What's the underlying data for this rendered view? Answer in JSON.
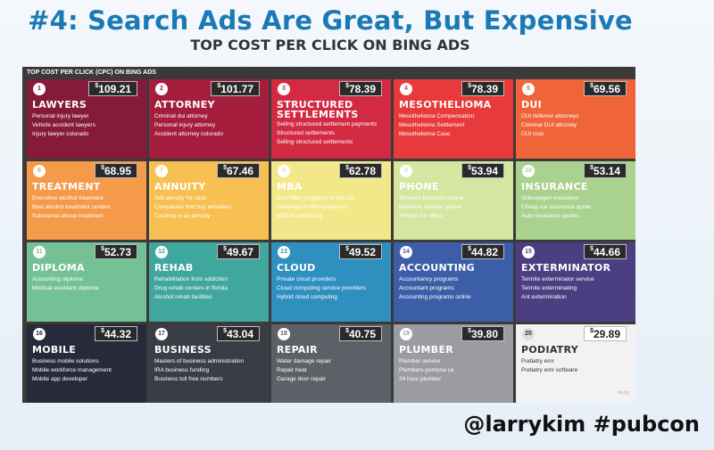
{
  "title": "#4: Search Ads Are Great, But Expensive",
  "subtitle": "TOP COST PER CLICK ON BING ADS",
  "infographic": {
    "header": "TOP COST PER CLICK (CPC) ON BING ADS",
    "footnote": "ds by:",
    "tiles": [
      {
        "rank": "1",
        "price": "109.21",
        "title": "LAWYERS",
        "color": "#861a3a",
        "items": [
          "Personal injury lawyer",
          "Vehicle accident lawyers",
          "Injury lawyer colorado"
        ]
      },
      {
        "rank": "2",
        "price": "101.77",
        "title": "ATTORNEY",
        "color": "#a51d3d",
        "items": [
          "Criminal dui attorney",
          "Personal injury attorney",
          "Accident attorney colorado"
        ]
      },
      {
        "rank": "3",
        "price": "78.39",
        "title": "STRUCTURED SETTLEMENTS",
        "color": "#d32a43",
        "items": [
          "Selling structured settlement payments",
          "Structured settlements",
          "Selling structured settlements"
        ]
      },
      {
        "rank": "4",
        "price": "78.39",
        "title": "MESOTHELIOMA",
        "color": "#e83a3a",
        "items": [
          "Mesothelioma Compensation",
          "Mesothelioma Settlement",
          "Mesothelioma Case"
        ]
      },
      {
        "rank": "5",
        "price": "69.56",
        "title": "DUI",
        "color": "#f0643a",
        "items": [
          "DUI defense attorneys",
          "Criminal DUI attorney",
          "DUI cost"
        ]
      },
      {
        "rank": "6",
        "price": "68.95",
        "title": "TREATMENT",
        "color": "#f59a48",
        "items": [
          "Executive alcohol treatment",
          "Best alcohol treatment centers",
          "Substance abuse treatment"
        ]
      },
      {
        "rank": "7",
        "price": "67.46",
        "title": "ANNUITY",
        "color": "#f8c052",
        "items": [
          "Sell annuity for cash",
          "Companies that buy annuities",
          "Cashing in an annuity"
        ]
      },
      {
        "rank": "8",
        "price": "62.78",
        "title": "MBA",
        "color": "#f3e889",
        "items": [
          "Best MBA programs in the US",
          "Rankings of MBA programs",
          "MBA in marketing"
        ]
      },
      {
        "rank": "9",
        "price": "53.94",
        "title": "PHONE",
        "color": "#d5e6a0",
        "items": [
          "Wireless business phone",
          "Business internet phone",
          "Phones for office"
        ]
      },
      {
        "rank": "10",
        "price": "53.14",
        "title": "INSURANCE",
        "color": "#a9d28f",
        "items": [
          "Volkswagen insurance",
          "Cheap car insurance quote",
          "Auto insurance quotes"
        ]
      },
      {
        "rank": "11",
        "price": "52.73",
        "title": "DIPLOMA",
        "color": "#75c196",
        "items": [
          "Accounting diploma",
          "Medical assistant diploma"
        ]
      },
      {
        "rank": "12",
        "price": "49.67",
        "title": "REHAB",
        "color": "#3fa79e",
        "items": [
          "Rehabilitation from addiction",
          "Drug rehab centers in florida",
          "Alcohol rehab facilities"
        ]
      },
      {
        "rank": "13",
        "price": "49.52",
        "title": "CLOUD",
        "color": "#2f8fbf",
        "items": [
          "Private cloud providers",
          "Cloud computing service providers",
          "Hybrid cloud computing"
        ]
      },
      {
        "rank": "14",
        "price": "44.82",
        "title": "ACCOUNTING",
        "color": "#3c5ea8",
        "items": [
          "Accountancy programs",
          "Accountant programs",
          "Accounting programs online"
        ]
      },
      {
        "rank": "15",
        "price": "44.66",
        "title": "EXTERMINATOR",
        "color": "#4b3f82",
        "items": [
          "Termite exterminator service",
          "Termite exterminating",
          "Ant extermination"
        ]
      },
      {
        "rank": "16",
        "price": "44.32",
        "title": "MOBILE",
        "color": "#262a3a",
        "items": [
          "Business mobile solutions",
          "Mobile workforce management",
          "Mobile app developer"
        ]
      },
      {
        "rank": "17",
        "price": "43.04",
        "title": "BUSINESS",
        "color": "#3a3d45",
        "items": [
          "Masters of business administration",
          "IRA business funding",
          "Business toll free numbers"
        ]
      },
      {
        "rank": "18",
        "price": "40.75",
        "title": "REPAIR",
        "color": "#5e6068",
        "items": [
          "Water damage repair",
          "Repair heat",
          "Garage door repair"
        ]
      },
      {
        "rank": "19",
        "price": "39.80",
        "title": "PLUMBER",
        "color": "#9a9ca2",
        "items": [
          "Plumber service",
          "Plumbers pomona ca",
          "24 hour plumber"
        ]
      },
      {
        "rank": "20",
        "price": "29.89",
        "title": "PODIATRY",
        "color": "#f2f2f2",
        "items": [
          "Podiatry emr",
          "Podiatry emr software"
        ]
      }
    ]
  },
  "footer": "@larrykim #pubcon"
}
